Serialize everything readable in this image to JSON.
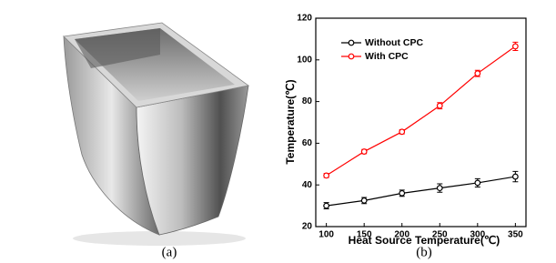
{
  "figure": {
    "label_a": "(a)",
    "label_b": "(b)"
  },
  "chart_data": {
    "type": "line",
    "x": [
      100,
      150,
      200,
      250,
      300,
      350
    ],
    "xlabel": "Heat Source Temperature(℃)",
    "ylabel": "Temperature(℃)",
    "xlim": [
      86,
      364
    ],
    "xticks": [
      100,
      150,
      200,
      250,
      300,
      350
    ],
    "ylim": [
      20,
      120
    ],
    "yticks": [
      20,
      40,
      60,
      80,
      100,
      120
    ],
    "legend": "upper-left",
    "series": [
      {
        "name": "Without CPC",
        "color": "#000000",
        "values": [
          30,
          32.5,
          36,
          38.5,
          41,
          44
        ],
        "errors": [
          1.5,
          1.5,
          1.5,
          2,
          2,
          2.5
        ]
      },
      {
        "name": "With CPC",
        "color": "#ff0000",
        "values": [
          44.5,
          56,
          65.5,
          78,
          93.5,
          106.5
        ],
        "errors": [
          1,
          1,
          1,
          1.5,
          1.5,
          2
        ]
      }
    ]
  }
}
